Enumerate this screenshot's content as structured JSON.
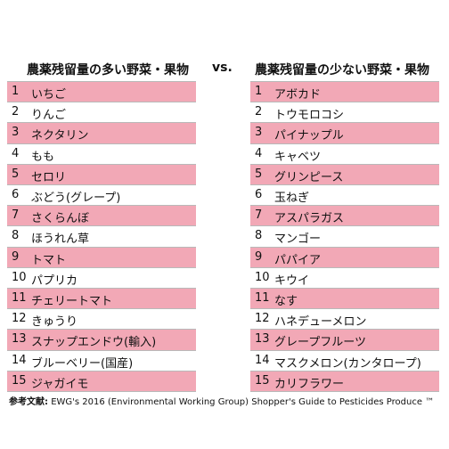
{
  "left": {
    "title": "農薬残留量の多い野菜・果物",
    "rows": [
      [
        1,
        "いちご"
      ],
      [
        2,
        "りんご"
      ],
      [
        3,
        "ネクタリン"
      ],
      [
        4,
        "もも"
      ],
      [
        5,
        "セロリ"
      ],
      [
        6,
        "ぶどう(グレープ)"
      ],
      [
        7,
        "さくらんぼ"
      ],
      [
        8,
        "ほうれん草"
      ],
      [
        9,
        "トマト"
      ],
      [
        10,
        "パプリカ"
      ],
      [
        11,
        "チェリートマト"
      ],
      [
        12,
        "きゅうり"
      ],
      [
        13,
        "スナップエンドウ(輸入)"
      ],
      [
        14,
        "ブルーベリー(国産)"
      ],
      [
        15,
        "ジャガイモ"
      ]
    ]
  },
  "vs": "vs.",
  "right": {
    "title": "農薬残留量の少ない野菜・果物",
    "rows": [
      [
        1,
        "アボカド"
      ],
      [
        2,
        "トウモロコシ"
      ],
      [
        3,
        "パイナップル"
      ],
      [
        4,
        "キャベツ"
      ],
      [
        5,
        "グリンピース"
      ],
      [
        6,
        "玉ねぎ"
      ],
      [
        7,
        "アスパラガス"
      ],
      [
        8,
        "マンゴー"
      ],
      [
        9,
        "パパイア"
      ],
      [
        10,
        "キウイ"
      ],
      [
        11,
        "なす"
      ],
      [
        12,
        "ハネデューメロン"
      ],
      [
        13,
        "グレープフルーツ"
      ],
      [
        14,
        "マスクメロン(カンタロープ)"
      ],
      [
        15,
        "カリフラワー"
      ]
    ]
  },
  "footer": {
    "label": "参考文献:",
    "text": "EWG's 2016 (Environmental Working Group) Shopper's Guide to Pesticides Produce ™"
  }
}
